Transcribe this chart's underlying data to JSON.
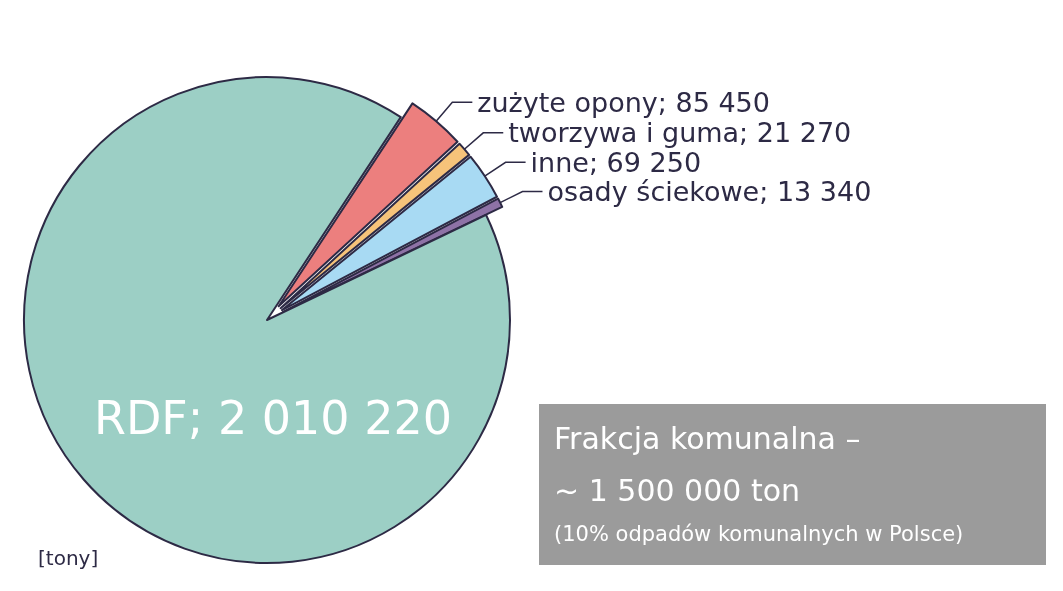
{
  "chart_data": {
    "type": "pie",
    "categories": [
      "zużyte opony",
      "tworzywa i guma",
      "inne",
      "osady ściekowe",
      "RDF"
    ],
    "values": [
      85450,
      21270,
      69250,
      13340,
      2010220
    ],
    "value_labels": [
      "85 450",
      "21 270",
      "69 250",
      "13 340",
      "2 010 220"
    ],
    "colors": [
      "#ec7f7e",
      "#f6c37a",
      "#a8daf3",
      "#8e72a6",
      "#9ccfc5"
    ],
    "legend": false,
    "annotations": [
      "[tony]",
      "Frakcja komunalna –",
      "~ 1 500 000 ton",
      "(10% odpadów komunalnych w Polsce)"
    ]
  }
}
